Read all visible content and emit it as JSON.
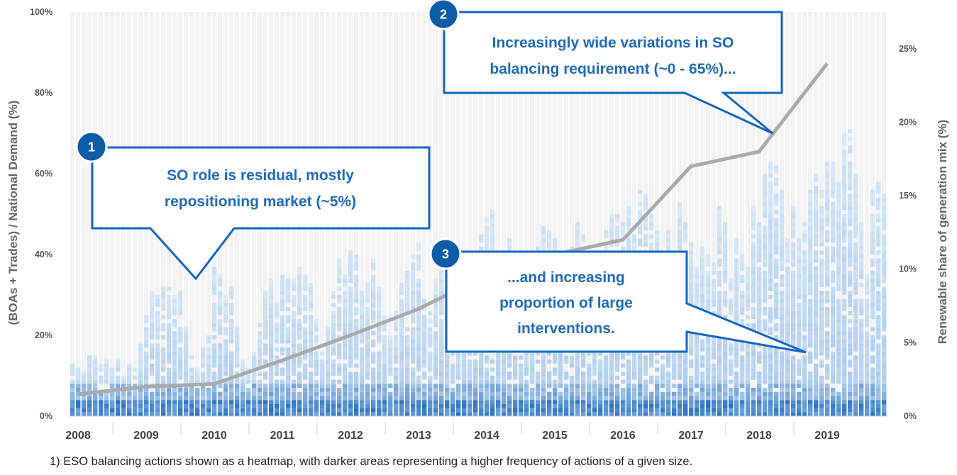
{
  "chart_data": {
    "type": "heatmap",
    "x_axis": {
      "tick_labels": [
        "2008",
        "2009",
        "2010",
        "2011",
        "2012",
        "2013",
        "2014",
        "2015",
        "2016",
        "2017",
        "2018",
        "2019"
      ]
    },
    "y_left": {
      "title": "(BOAs + Trades) / National Demand (%)",
      "tick_labels": [
        "0%",
        "20%",
        "40%",
        "60%",
        "80%",
        "100%"
      ],
      "range": [
        0,
        100
      ]
    },
    "y_right": {
      "title": "Renewable share of generation mix (%)",
      "tick_labels": [
        "0%",
        "5%",
        "10%",
        "15%",
        "20%",
        "25%"
      ],
      "range": [
        0,
        27.5
      ]
    },
    "heatmap": {
      "description_units": "monthly maximum of balancing actions as % of national demand",
      "monthly_max_pct": [
        13,
        12,
        12,
        16,
        15,
        13,
        14,
        12,
        14,
        11,
        13,
        12,
        18,
        25,
        31,
        30,
        33,
        32,
        30,
        31,
        22,
        15,
        12,
        17,
        20,
        37,
        35,
        30,
        33,
        22,
        14,
        12,
        16,
        23,
        31,
        34,
        30,
        36,
        37,
        34,
        38,
        35,
        33,
        24,
        18,
        22,
        31,
        39,
        35,
        42,
        40,
        31,
        33,
        39,
        32,
        25,
        20,
        26,
        33,
        36,
        40,
        43,
        29,
        27,
        34,
        40,
        36,
        30,
        25,
        32,
        39,
        42,
        45,
        49,
        51,
        37,
        38,
        44,
        40,
        34,
        30,
        36,
        42,
        47,
        46,
        44,
        41,
        40,
        42,
        48,
        45,
        38,
        33,
        40,
        46,
        50,
        50,
        48,
        52,
        47,
        56,
        55,
        50,
        47,
        40,
        46,
        38,
        53,
        48,
        44,
        37,
        42,
        40,
        38,
        52,
        49,
        34,
        44,
        40,
        37,
        52,
        48,
        60,
        63,
        62,
        56,
        44,
        52,
        44,
        48,
        56,
        60,
        56,
        63,
        63,
        58,
        70,
        72,
        60,
        48,
        35,
        56,
        58,
        55
      ]
    },
    "series": [
      {
        "name": "",
        "axis": "right",
        "x": [
          2008.0,
          2009.0,
          2010.0,
          2011.0,
          2012.0,
          2013.0,
          2014.0,
          2015.0,
          2016.0,
          2017.0,
          2018.0,
          2019.0
        ],
        "values": [
          1.5,
          2.0,
          2.2,
          3.8,
          5.5,
          7.3,
          9.6,
          11.0,
          12.0,
          17.0,
          18.0,
          24.0
        ]
      }
    ],
    "grid": true,
    "annotations": [
      {
        "badge": "1",
        "lines": [
          "SO role is residual, mostly",
          "repositioning market (~5%)"
        ]
      },
      {
        "badge": "2",
        "lines": [
          "Increasingly wide variations in SO",
          "balancing requirement (~0 - 65%)..."
        ]
      },
      {
        "badge": "3",
        "lines": [
          "...and increasing",
          "proportion of large",
          "interventions."
        ]
      }
    ]
  },
  "footnote": "1) ESO balancing actions shown as a heatmap, with darker areas representing a higher frequency of actions of a given size.",
  "colors": {
    "heat_light": "#dcebfa",
    "heat_dark": "#1565c0",
    "trend_line": "#aaaaaa",
    "callout_border": "#1565c0",
    "badge": "#0d5ca8"
  }
}
